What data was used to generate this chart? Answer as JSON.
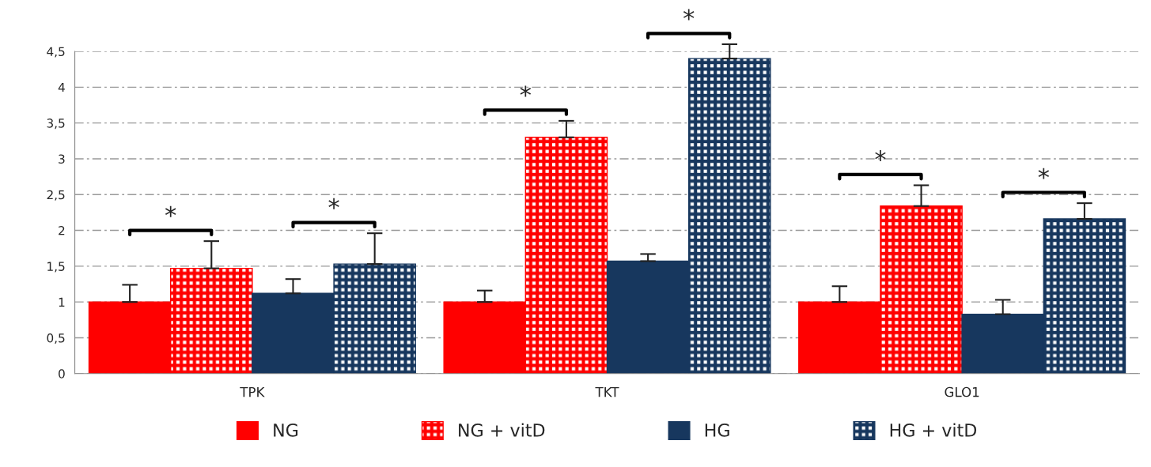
{
  "chart_data": {
    "type": "bar",
    "categories": [
      "TPK",
      "TKT",
      "GLO1"
    ],
    "series": [
      {
        "name": "NG",
        "color": "#ff0000",
        "values": [
          1.0,
          1.0,
          1.0
        ],
        "errors": [
          0.24,
          0.16,
          0.22
        ]
      },
      {
        "name": "NG + vitD",
        "color": "#ff0000",
        "values": [
          1.47,
          3.3,
          2.34
        ],
        "errors": [
          0.38,
          0.23,
          0.29
        ]
      },
      {
        "name": "HG",
        "color": "#17375e",
        "values": [
          1.12,
          1.57,
          0.83
        ],
        "errors": [
          0.2,
          0.1,
          0.2
        ]
      },
      {
        "name": "HG + vitD",
        "color": "#17375e",
        "values": [
          1.53,
          4.4,
          2.16
        ],
        "errors": [
          0.43,
          0.2,
          0.22
        ]
      }
    ],
    "ylim": [
      0,
      4.5
    ],
    "yticks": [
      0,
      {
        "value": 0.5,
        "label": "0,5"
      },
      1,
      {
        "value": 1.5,
        "label": "1,5"
      },
      2,
      {
        "value": 2.5,
        "label": "2,5"
      },
      3,
      {
        "value": 3.5,
        "label": "3,5"
      },
      4,
      {
        "value": 4.5,
        "label": "4,5"
      }
    ],
    "grid": "y",
    "legend": "bottom",
    "annotations": [
      "*",
      "*",
      "*",
      "*",
      "*",
      "*"
    ]
  }
}
